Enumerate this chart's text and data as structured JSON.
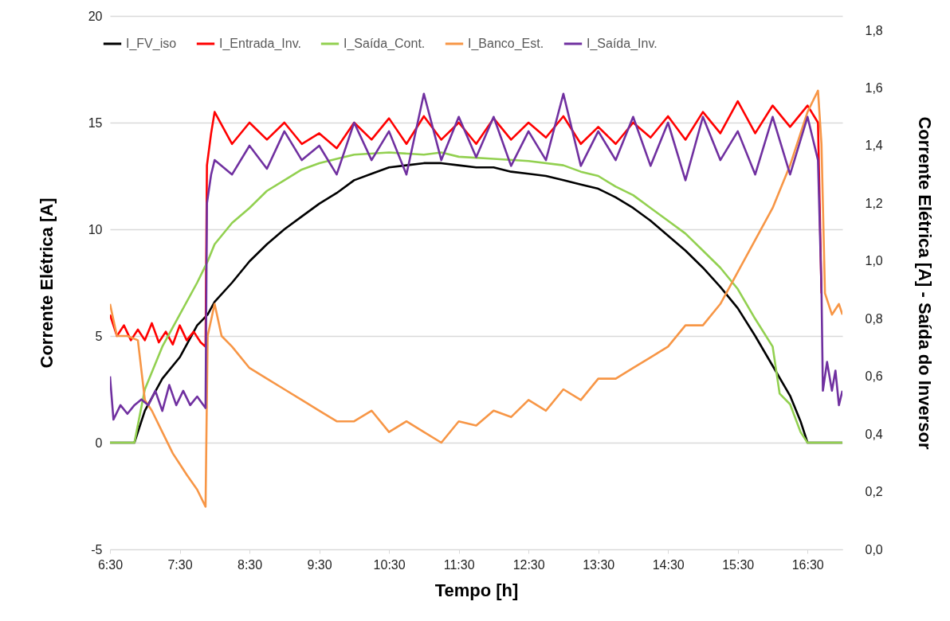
{
  "chart_data": {
    "type": "line",
    "xlabel": "Tempo [h]",
    "ylabel": "Corrente Elétrica [A]",
    "y2label": "Corrente Elétrica [A] - Saída do Inversor",
    "xlim": [
      6.5,
      17.0
    ],
    "xticks": [
      {
        "value": 6.5,
        "label": "6:30"
      },
      {
        "value": 7.5,
        "label": "7:30"
      },
      {
        "value": 8.5,
        "label": "8:30"
      },
      {
        "value": 9.5,
        "label": "9:30"
      },
      {
        "value": 10.5,
        "label": "10:30"
      },
      {
        "value": 11.5,
        "label": "11:30"
      },
      {
        "value": 12.5,
        "label": "12:30"
      },
      {
        "value": 13.5,
        "label": "13:30"
      },
      {
        "value": 14.5,
        "label": "14:30"
      },
      {
        "value": 15.5,
        "label": "15:30"
      },
      {
        "value": 16.5,
        "label": "16:30"
      }
    ],
    "ylim": [
      -5,
      20
    ],
    "yticks": [
      -5,
      0,
      5,
      10,
      15,
      20
    ],
    "y2lim": [
      0,
      1.85
    ],
    "y2ticks": [
      {
        "value": 0,
        "label": "0,0"
      },
      {
        "value": 0.2,
        "label": "0,2"
      },
      {
        "value": 0.4,
        "label": "0,4"
      },
      {
        "value": 0.6,
        "label": "0,6"
      },
      {
        "value": 0.8,
        "label": "0,8"
      },
      {
        "value": 1.0,
        "label": "1,0"
      },
      {
        "value": 1.2,
        "label": "1,2"
      },
      {
        "value": 1.4,
        "label": "1,4"
      },
      {
        "value": 1.6,
        "label": "1,6"
      },
      {
        "value": 1.8,
        "label": "1,8"
      }
    ],
    "grid": "y",
    "legend": "top",
    "line_style": "solid",
    "marker": "none",
    "series": [
      {
        "name": "I_FV_iso",
        "color": "#000000",
        "x": [
          6.5,
          6.85,
          7.0,
          7.25,
          7.5,
          7.75,
          7.9,
          8.0,
          8.25,
          8.5,
          8.75,
          9.0,
          9.25,
          9.5,
          9.75,
          10.0,
          10.25,
          10.5,
          10.75,
          11.0,
          11.25,
          11.5,
          11.75,
          12.0,
          12.25,
          12.5,
          12.75,
          13.0,
          13.25,
          13.5,
          13.75,
          14.0,
          14.25,
          14.5,
          14.75,
          15.0,
          15.25,
          15.5,
          15.75,
          16.0,
          16.25,
          16.4,
          16.5,
          16.75,
          17.0
        ],
        "values": [
          0,
          0,
          1.5,
          3.0,
          4.0,
          5.5,
          6.0,
          6.6,
          7.5,
          8.5,
          9.3,
          10.0,
          10.6,
          11.2,
          11.7,
          12.3,
          12.6,
          12.9,
          13.0,
          13.1,
          13.1,
          13.0,
          12.9,
          12.9,
          12.7,
          12.6,
          12.5,
          12.3,
          12.1,
          11.9,
          11.5,
          11.0,
          10.4,
          9.7,
          9.0,
          8.2,
          7.3,
          6.3,
          5.0,
          3.6,
          2.2,
          1.0,
          0,
          0,
          0
        ]
      },
      {
        "name": "I_Entrada_Inv.",
        "color": "#ff0000",
        "x": [
          6.5,
          6.6,
          6.7,
          6.8,
          6.9,
          7.0,
          7.1,
          7.2,
          7.3,
          7.4,
          7.5,
          7.6,
          7.7,
          7.8,
          7.87,
          7.89,
          7.95,
          8.0,
          8.25,
          8.5,
          8.75,
          9.0,
          9.25,
          9.5,
          9.75,
          10.0,
          10.25,
          10.5,
          10.75,
          11.0,
          11.25,
          11.5,
          11.75,
          12.0,
          12.25,
          12.5,
          12.75,
          13.0,
          13.25,
          13.5,
          13.75,
          14.0,
          14.25,
          14.5,
          14.75,
          15.0,
          15.25,
          15.5,
          15.75,
          16.0,
          16.25,
          16.5,
          16.65,
          16.7
        ],
        "values": [
          6.0,
          5.0,
          5.5,
          4.8,
          5.3,
          4.8,
          5.6,
          4.7,
          5.2,
          4.6,
          5.5,
          4.8,
          5.2,
          4.7,
          4.5,
          13.0,
          14.5,
          15.5,
          14.0,
          15.0,
          14.2,
          15.0,
          14.0,
          14.5,
          13.8,
          15.0,
          14.2,
          15.2,
          14.0,
          15.3,
          14.2,
          15.0,
          14.0,
          15.2,
          14.2,
          15.0,
          14.3,
          15.3,
          14.0,
          14.8,
          14.0,
          15.0,
          14.3,
          15.3,
          14.2,
          15.5,
          14.5,
          16.0,
          14.5,
          15.8,
          14.8,
          15.8,
          15.0,
          7.0
        ]
      },
      {
        "name": "I_Saída_Cont.",
        "color": "#92d050",
        "x": [
          6.5,
          6.85,
          7.0,
          7.25,
          7.5,
          7.75,
          7.9,
          8.0,
          8.25,
          8.5,
          8.75,
          9.0,
          9.25,
          9.5,
          9.75,
          10.0,
          10.5,
          11.0,
          11.25,
          11.5,
          12.0,
          12.5,
          13.0,
          13.25,
          13.5,
          13.75,
          14.0,
          14.25,
          14.5,
          14.75,
          15.0,
          15.25,
          15.5,
          15.75,
          16.0,
          16.1,
          16.25,
          16.4,
          16.5,
          17.0
        ],
        "values": [
          0,
          0,
          2.5,
          4.5,
          6.0,
          7.5,
          8.5,
          9.3,
          10.3,
          11.0,
          11.8,
          12.3,
          12.8,
          13.1,
          13.3,
          13.5,
          13.6,
          13.5,
          13.6,
          13.4,
          13.3,
          13.2,
          13.0,
          12.7,
          12.5,
          12.0,
          11.6,
          11.0,
          10.4,
          9.8,
          9.0,
          8.2,
          7.2,
          5.8,
          4.5,
          2.3,
          1.8,
          0.5,
          0,
          0
        ]
      },
      {
        "name": "I_Banco_Est.",
        "color": "#f79646",
        "x": [
          6.5,
          6.6,
          6.75,
          6.9,
          7.0,
          7.1,
          7.25,
          7.4,
          7.5,
          7.6,
          7.75,
          7.87,
          7.9,
          8.0,
          8.1,
          8.25,
          8.5,
          8.75,
          9.0,
          9.25,
          9.5,
          9.75,
          10.0,
          10.25,
          10.5,
          10.75,
          11.0,
          11.25,
          11.5,
          11.75,
          12.0,
          12.25,
          12.5,
          12.75,
          13.0,
          13.25,
          13.5,
          13.75,
          14.0,
          14.25,
          14.5,
          14.75,
          15.0,
          15.25,
          15.5,
          15.75,
          16.0,
          16.25,
          16.5,
          16.65,
          16.7,
          16.75,
          16.85,
          16.95,
          17.0
        ],
        "values": [
          6.5,
          5.0,
          5.0,
          4.8,
          2.0,
          1.5,
          0.5,
          -0.5,
          -1.0,
          -1.5,
          -2.2,
          -3.0,
          5.0,
          6.5,
          5.0,
          4.5,
          3.5,
          3.0,
          2.5,
          2.0,
          1.5,
          1.0,
          1.0,
          1.5,
          0.5,
          1.0,
          0.5,
          0.0,
          1.0,
          0.8,
          1.5,
          1.2,
          2.0,
          1.5,
          2.5,
          2.0,
          3.0,
          3.0,
          3.5,
          4.0,
          4.5,
          5.5,
          5.5,
          6.5,
          8.0,
          9.5,
          11.0,
          13.0,
          15.5,
          16.5,
          14.0,
          7.0,
          6.0,
          6.5,
          6.0
        ]
      },
      {
        "name": "I_Saída_Inv.",
        "color": "#7030a0",
        "axis": "y2",
        "x": [
          6.5,
          6.55,
          6.65,
          6.75,
          6.85,
          6.95,
          7.05,
          7.15,
          7.25,
          7.35,
          7.45,
          7.55,
          7.65,
          7.75,
          7.87,
          7.89,
          7.95,
          8.0,
          8.25,
          8.5,
          8.75,
          9.0,
          9.25,
          9.5,
          9.75,
          10.0,
          10.25,
          10.5,
          10.75,
          11.0,
          11.25,
          11.5,
          11.75,
          12.0,
          12.25,
          12.5,
          12.75,
          13.0,
          13.25,
          13.5,
          13.75,
          14.0,
          14.25,
          14.5,
          14.75,
          15.0,
          15.25,
          15.5,
          15.75,
          16.0,
          16.25,
          16.5,
          16.65,
          16.7,
          16.72,
          16.78,
          16.85,
          16.9,
          16.95,
          17.0
        ],
        "values": [
          0.6,
          0.45,
          0.5,
          0.47,
          0.5,
          0.52,
          0.5,
          0.55,
          0.48,
          0.57,
          0.5,
          0.55,
          0.5,
          0.53,
          0.49,
          1.2,
          1.3,
          1.35,
          1.3,
          1.4,
          1.32,
          1.45,
          1.35,
          1.4,
          1.3,
          1.48,
          1.35,
          1.45,
          1.3,
          1.58,
          1.35,
          1.5,
          1.36,
          1.5,
          1.33,
          1.45,
          1.35,
          1.58,
          1.33,
          1.45,
          1.35,
          1.5,
          1.33,
          1.48,
          1.28,
          1.5,
          1.35,
          1.45,
          1.3,
          1.5,
          1.3,
          1.5,
          1.35,
          0.9,
          0.55,
          0.65,
          0.55,
          0.62,
          0.5,
          0.55
        ]
      }
    ]
  }
}
